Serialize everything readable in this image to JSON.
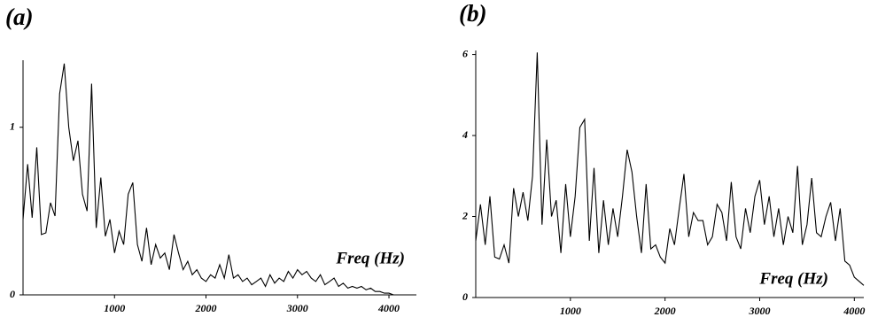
{
  "chart_data": [
    {
      "type": "line",
      "title": "(a)",
      "x_label": "Freq (Hz)",
      "color": "#000000",
      "xlim": [
        0,
        4300
      ],
      "xticks": [
        1000,
        2000,
        3000,
        4000
      ],
      "ylim": [
        0,
        1.4
      ],
      "yticks": [
        0,
        1
      ],
      "x": [
        0,
        50,
        100,
        150,
        200,
        250,
        300,
        350,
        400,
        450,
        500,
        550,
        600,
        650,
        700,
        750,
        800,
        850,
        900,
        950,
        1000,
        1050,
        1100,
        1150,
        1200,
        1250,
        1300,
        1350,
        1400,
        1450,
        1500,
        1550,
        1600,
        1650,
        1700,
        1750,
        1800,
        1850,
        1900,
        1950,
        2000,
        2050,
        2100,
        2150,
        2200,
        2250,
        2300,
        2350,
        2400,
        2450,
        2500,
        2550,
        2600,
        2650,
        2700,
        2750,
        2800,
        2850,
        2900,
        2950,
        3000,
        3050,
        3100,
        3150,
        3200,
        3250,
        3300,
        3350,
        3400,
        3450,
        3500,
        3550,
        3600,
        3650,
        3700,
        3750,
        3800,
        3850,
        3900,
        3950,
        4000,
        4050,
        4100
      ],
      "values": [
        0.45,
        0.78,
        0.46,
        0.88,
        0.36,
        0.37,
        0.55,
        0.47,
        1.2,
        1.38,
        1.0,
        0.8,
        0.92,
        0.6,
        0.5,
        1.26,
        0.4,
        0.7,
        0.35,
        0.45,
        0.25,
        0.38,
        0.3,
        0.6,
        0.67,
        0.3,
        0.2,
        0.4,
        0.18,
        0.3,
        0.22,
        0.25,
        0.15,
        0.36,
        0.25,
        0.15,
        0.2,
        0.12,
        0.15,
        0.1,
        0.08,
        0.12,
        0.1,
        0.18,
        0.1,
        0.24,
        0.1,
        0.12,
        0.08,
        0.1,
        0.06,
        0.08,
        0.1,
        0.05,
        0.12,
        0.07,
        0.1,
        0.08,
        0.14,
        0.1,
        0.15,
        0.12,
        0.14,
        0.1,
        0.08,
        0.12,
        0.06,
        0.08,
        0.1,
        0.05,
        0.07,
        0.04,
        0.05,
        0.04,
        0.05,
        0.03,
        0.04,
        0.02,
        0.02,
        0.01,
        0.01,
        0,
        0
      ]
    },
    {
      "type": "line",
      "title": "(b)",
      "x_label": "Freq (Hz)",
      "color": "#000000",
      "xlim": [
        0,
        4100
      ],
      "xticks": [
        1000,
        2000,
        3000,
        4000
      ],
      "ylim": [
        0,
        6.1
      ],
      "yticks": [
        0,
        2,
        4,
        6
      ],
      "x": [
        0,
        50,
        100,
        150,
        200,
        250,
        300,
        350,
        400,
        450,
        500,
        550,
        600,
        650,
        700,
        750,
        800,
        850,
        900,
        950,
        1000,
        1050,
        1100,
        1150,
        1200,
        1250,
        1300,
        1350,
        1400,
        1450,
        1500,
        1550,
        1600,
        1650,
        1700,
        1750,
        1800,
        1850,
        1900,
        1950,
        2000,
        2050,
        2100,
        2150,
        2200,
        2250,
        2300,
        2350,
        2400,
        2450,
        2500,
        2550,
        2600,
        2650,
        2700,
        2750,
        2800,
        2850,
        2900,
        2950,
        3000,
        3050,
        3100,
        3150,
        3200,
        3250,
        3300,
        3350,
        3400,
        3450,
        3500,
        3550,
        3600,
        3650,
        3700,
        3750,
        3800,
        3850,
        3900,
        3950,
        4000,
        4050,
        4100
      ],
      "values": [
        1.4,
        2.3,
        1.3,
        2.5,
        1.0,
        0.95,
        1.3,
        0.85,
        2.7,
        2.0,
        2.6,
        1.9,
        3.0,
        6.05,
        1.8,
        3.9,
        2.0,
        2.4,
        1.1,
        2.8,
        1.5,
        2.5,
        4.2,
        4.4,
        1.4,
        3.2,
        1.1,
        2.4,
        1.3,
        2.2,
        1.5,
        2.5,
        3.65,
        3.1,
        2.0,
        1.1,
        2.8,
        1.2,
        1.3,
        1.0,
        0.85,
        1.7,
        1.3,
        2.2,
        3.05,
        1.5,
        2.1,
        1.9,
        1.9,
        1.3,
        1.5,
        2.3,
        2.1,
        1.4,
        2.85,
        1.5,
        1.2,
        2.2,
        1.6,
        2.5,
        2.9,
        1.8,
        2.5,
        1.5,
        2.2,
        1.3,
        2.0,
        1.6,
        3.25,
        1.3,
        1.8,
        2.95,
        1.6,
        1.5,
        2.0,
        2.35,
        1.4,
        2.2,
        0.9,
        0.8,
        0.5,
        0.4,
        0.3
      ]
    }
  ]
}
